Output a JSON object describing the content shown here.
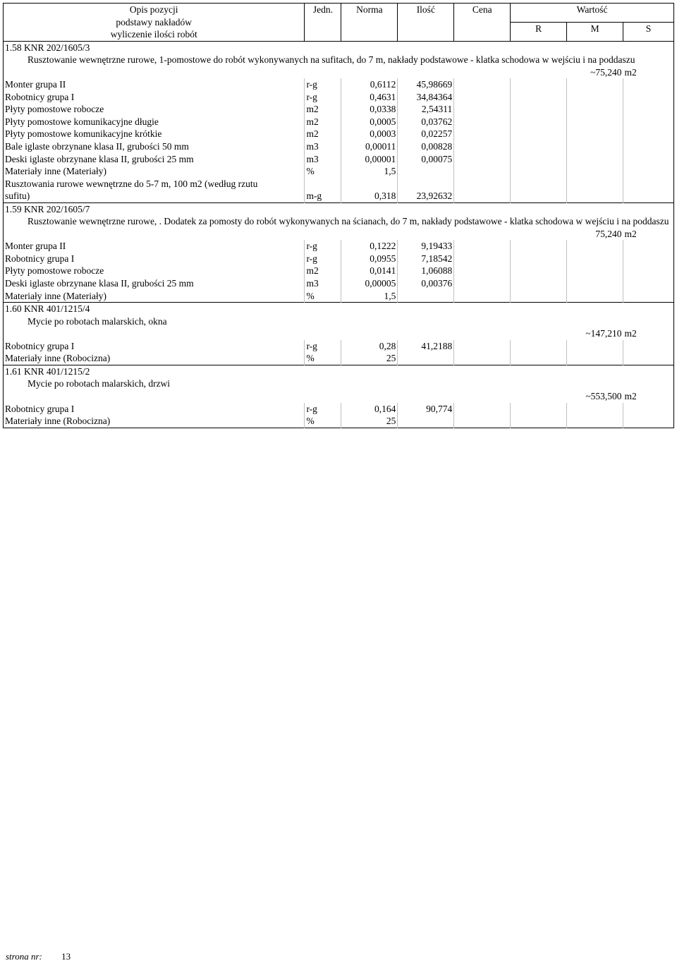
{
  "header": {
    "opis_line1": "Opis pozycji",
    "opis_line2": "podstawy nakładów",
    "opis_line3": "wyliczenie ilości robót",
    "jedn": "Jedn.",
    "norma": "Norma",
    "ilosc": "Ilość",
    "cena": "Cena",
    "wartosc": "Wartość",
    "r": "R",
    "m": "M",
    "s": "S"
  },
  "sections": [
    {
      "num": "1.58",
      "code": "KNR 202/1605/3",
      "title": "Rusztowanie wewnętrzne rurowe, 1-pomostowe do robót wykonywanych na sufitach, do 7 m, nakłady podstawowe - klatka schodowa w wejściu i na poddaszu",
      "qty": "~75,240",
      "unit": "m2",
      "rows": [
        {
          "desc": "Monter grupa II",
          "jedn": "r-g",
          "norma": "0,6112",
          "ilosc": "45,98669"
        },
        {
          "desc": "Robotnicy grupa I",
          "jedn": "r-g",
          "norma": "0,4631",
          "ilosc": "34,84364"
        },
        {
          "desc": "Płyty pomostowe robocze",
          "jedn": "m2",
          "norma": "0,0338",
          "ilosc": "2,54311"
        },
        {
          "desc": "Płyty pomostowe komunikacyjne długie",
          "jedn": "m2",
          "norma": "0,0005",
          "ilosc": "0,03762"
        },
        {
          "desc": "Płyty pomostowe komunikacyjne krótkie",
          "jedn": "m2",
          "norma": "0,0003",
          "ilosc": "0,02257"
        },
        {
          "desc": "Bale iglaste obrzynane klasa II, grubości 50 mm",
          "jedn": "m3",
          "norma": "0,00011",
          "ilosc": "0,00828"
        },
        {
          "desc": "Deski iglaste obrzynane klasa II, grubości 25 mm",
          "jedn": "m3",
          "norma": "0,00001",
          "ilosc": "0,00075"
        },
        {
          "desc": "Materiały inne (Materiały)",
          "jedn": "%",
          "norma": "1,5",
          "ilosc": ""
        },
        {
          "desc": "Rusztowania rurowe wewnętrzne do 5-7 m, 100 m2 (według rzutu sufitu)",
          "jedn": "m-g",
          "norma": "0,318",
          "ilosc": "23,92632",
          "wrap": true
        }
      ]
    },
    {
      "num": "1.59",
      "code": "KNR 202/1605/7",
      "title": "Rusztowanie wewnętrzne rurowe, . Dodatek za pomosty do robót wykonywanych na ścianach, do 7 m, nakłady podstawowe - klatka schodowa w wejściu i na poddaszu",
      "qty": "75,240",
      "unit": "m2",
      "rows": [
        {
          "desc": "Monter grupa II",
          "jedn": "r-g",
          "norma": "0,1222",
          "ilosc": "9,19433"
        },
        {
          "desc": "Robotnicy grupa I",
          "jedn": "r-g",
          "norma": "0,0955",
          "ilosc": "7,18542"
        },
        {
          "desc": "Płyty pomostowe robocze",
          "jedn": "m2",
          "norma": "0,0141",
          "ilosc": "1,06088"
        },
        {
          "desc": "Deski iglaste obrzynane klasa II, grubości 25 mm",
          "jedn": "m3",
          "norma": "0,00005",
          "ilosc": "0,00376"
        },
        {
          "desc": "Materiały inne (Materiały)",
          "jedn": "%",
          "norma": "1,5",
          "ilosc": ""
        }
      ]
    },
    {
      "num": "1.60",
      "code": "KNR 401/1215/4",
      "title": "Mycie po robotach malarskich, okna",
      "qty": "~147,210",
      "unit": "m2",
      "rows": [
        {
          "desc": "Robotnicy grupa I",
          "jedn": "r-g",
          "norma": "0,28",
          "ilosc": "41,2188"
        },
        {
          "desc": "Materiały inne (Robocizna)",
          "jedn": "%",
          "norma": "25",
          "ilosc": ""
        }
      ]
    },
    {
      "num": "1.61",
      "code": "KNR 401/1215/2",
      "title": "Mycie po robotach malarskich, drzwi",
      "qty": "~553,500",
      "unit": "m2",
      "rows": [
        {
          "desc": "Robotnicy grupa I",
          "jedn": "r-g",
          "norma": "0,164",
          "ilosc": "90,774"
        },
        {
          "desc": "Materiały inne (Robocizna)",
          "jedn": "%",
          "norma": "25",
          "ilosc": ""
        }
      ]
    }
  ],
  "footer": {
    "label": "strona nr:",
    "page": "13"
  }
}
